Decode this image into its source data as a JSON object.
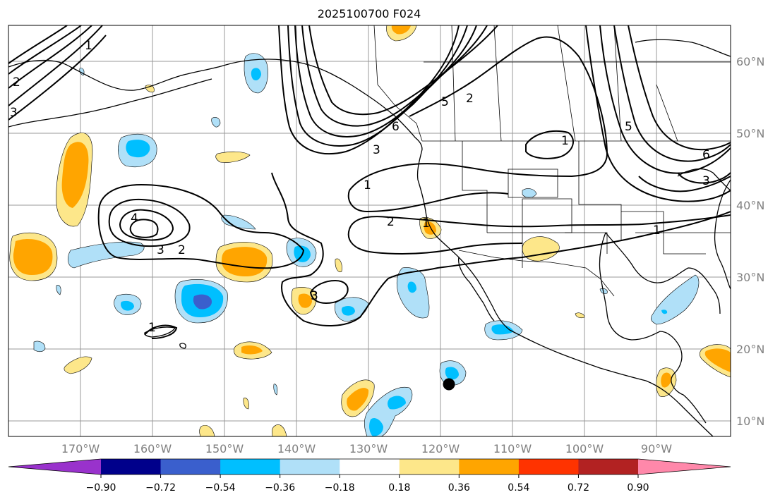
{
  "title": "2025100700 F024",
  "colors": {
    "pos1": "#fde78a",
    "pos2": "#ffa500",
    "pos3": "#ff3300",
    "pos4": "#b22222",
    "pos5": "#ff88aa",
    "neg1": "#b0e0f8",
    "neg2": "#00bfff",
    "neg3": "#3a5fcd",
    "neg4": "#00008b",
    "neg5": "#9932cc",
    "grid": "#999999",
    "land": "#000000"
  },
  "lat_labels": [
    "60°N",
    "50°N",
    "40°N",
    "30°N",
    "20°N",
    "10°N"
  ],
  "lon_labels": [
    "170°W",
    "160°W",
    "150°W",
    "140°W",
    "130°W",
    "120°W",
    "110°W",
    "100°W",
    "90°W"
  ],
  "colorbar": {
    "levels": [
      "−0.90",
      "−0.72",
      "−0.54",
      "−0.36",
      "−0.18",
      "0.18",
      "0.36",
      "0.54",
      "0.72",
      "0.90"
    ],
    "colors": [
      "#9932cc",
      "#00008b",
      "#3a5fcd",
      "#00bfff",
      "#b0e0f8",
      "#ffffff",
      "#fde78a",
      "#ffa500",
      "#ff3300",
      "#b22222",
      "#ff88aa"
    ]
  },
  "contour_labels": [
    "3",
    "2",
    "1",
    "3",
    "2",
    "6",
    "5",
    "2",
    "3",
    "1",
    "2",
    "1",
    "1",
    "1",
    "3",
    "6",
    "4",
    "5",
    "3",
    "1"
  ],
  "storm_marker": "tropical-cyclone-position"
}
